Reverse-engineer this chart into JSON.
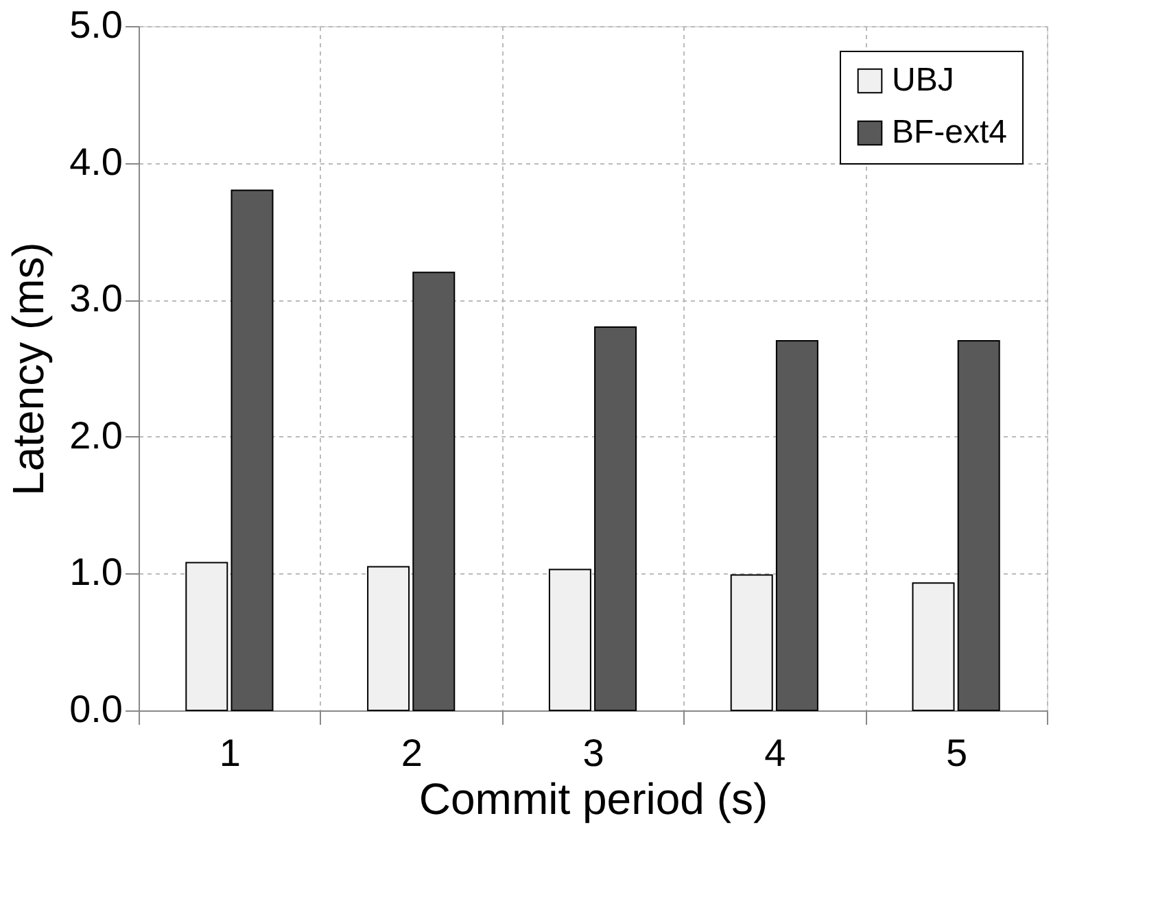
{
  "chart_data": {
    "type": "bar",
    "xlabel": "Commit period (s)",
    "ylabel": "Latency (ms)",
    "categories": [
      "1",
      "2",
      "3",
      "4",
      "5"
    ],
    "series": [
      {
        "name": "UBJ",
        "color": "#f0f0f0",
        "values": [
          1.08,
          1.05,
          1.03,
          0.99,
          0.93
        ]
      },
      {
        "name": "BF-ext4",
        "color": "#595959",
        "values": [
          3.8,
          3.2,
          2.8,
          2.7,
          2.7
        ]
      }
    ],
    "ylim": [
      0,
      5
    ],
    "yticks": [
      {
        "value": 0,
        "label": "0.0"
      },
      {
        "value": 1,
        "label": "1.0"
      },
      {
        "value": 2,
        "label": "2.0"
      },
      {
        "value": 3,
        "label": "3.0"
      },
      {
        "value": 4,
        "label": "4.0"
      },
      {
        "value": 5,
        "label": "5.0"
      }
    ],
    "grid": true,
    "legend": "top right"
  }
}
